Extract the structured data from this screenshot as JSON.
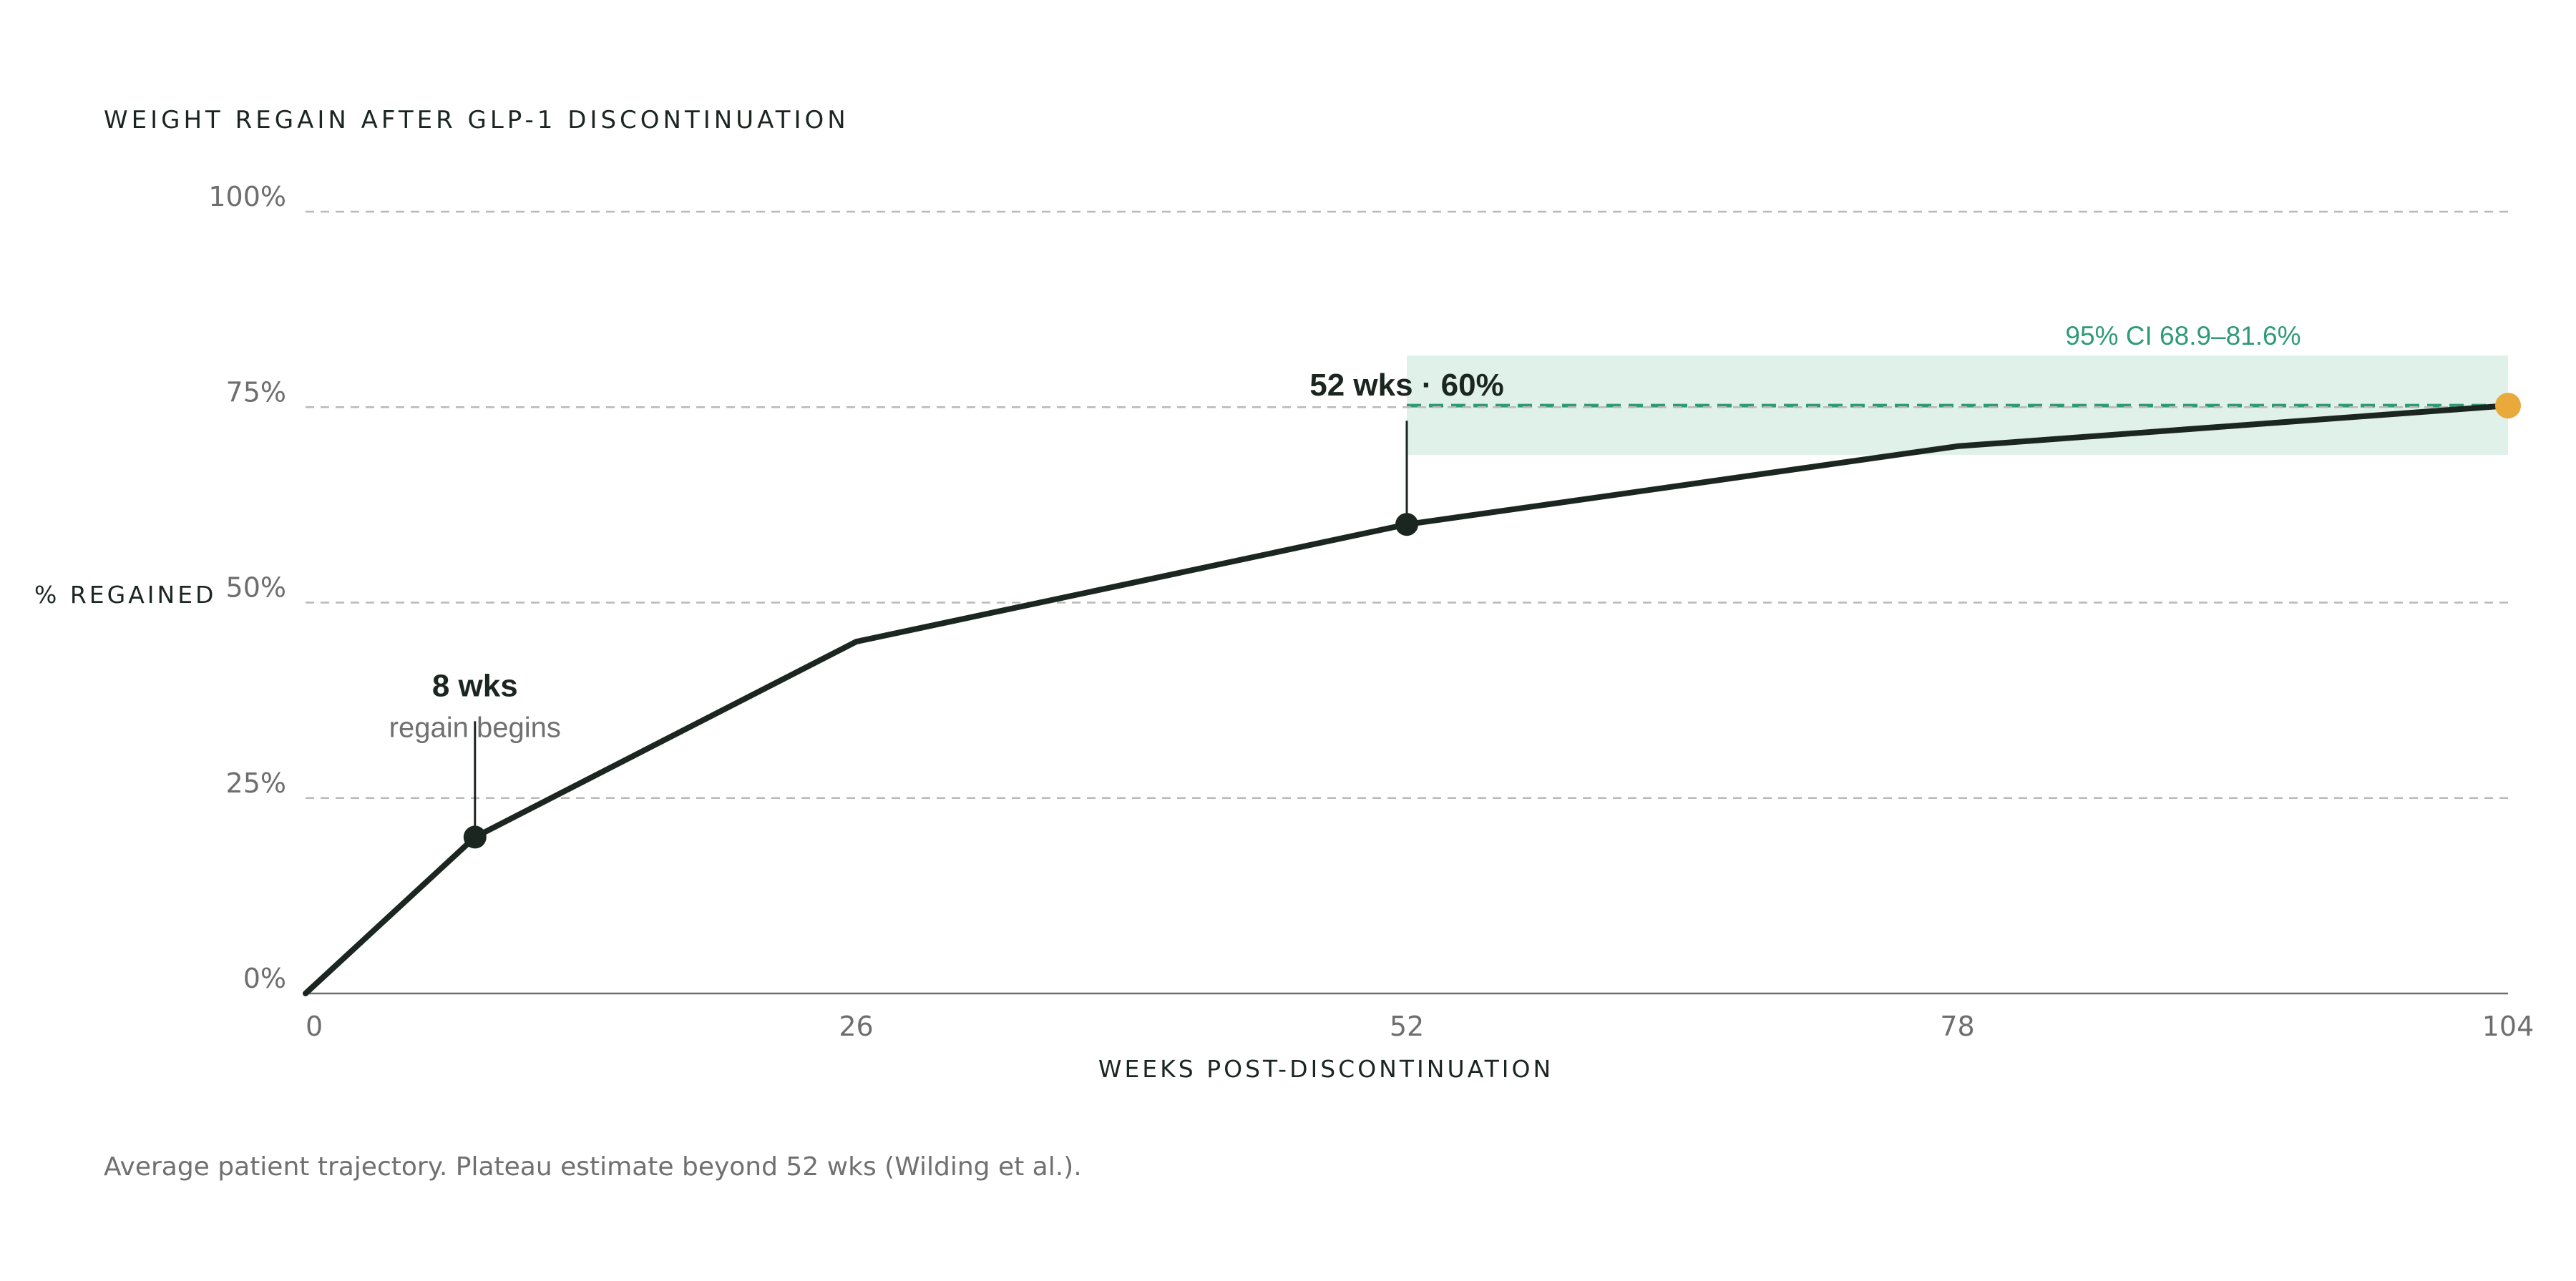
{
  "chart_data": {
    "type": "line",
    "title": "WEIGHT REGAIN AFTER GLP-1 DISCONTINUATION",
    "xlabel": "WEEKS POST-DISCONTINUATION",
    "ylabel": "% REGAINED",
    "xlim": [
      0,
      104
    ],
    "ylim": [
      0,
      100
    ],
    "x_ticks": [
      0,
      26,
      52,
      78,
      104
    ],
    "x_tick_labels": [
      "0",
      "26",
      "52",
      "78",
      "104"
    ],
    "y_ticks": [
      0,
      25,
      50,
      75,
      100
    ],
    "y_tick_labels": [
      "0%",
      "25%",
      "50%",
      "75%",
      "100%"
    ],
    "grid": true,
    "series": [
      {
        "x": [
          0,
          8,
          26,
          52,
          78,
          104
        ],
        "y": [
          0,
          20,
          45,
          60,
          70,
          75.2
        ]
      }
    ],
    "ci": {
      "x_start": 52,
      "x_end": 104,
      "lower": 68.9,
      "upper": 81.6,
      "estimate": 75.2,
      "label": "95% CI 68.9–81.6%"
    },
    "annotations": [
      {
        "x": 8,
        "y": 20,
        "label": "8 wks",
        "sublabel": "regain begins"
      },
      {
        "x": 52,
        "y": 60,
        "label": "52 wks · 60%"
      }
    ],
    "footnote": "Average patient trajectory. Plateau estimate beyond 52 wks (Wilding et al.).",
    "colors": {
      "line": "#1c2621",
      "ci_band": "#e0f1ea",
      "plateau": "#2e9a78",
      "endpoint": "#e9a93b",
      "grid": "#b9b9b9",
      "muted_text": "#707070"
    }
  }
}
